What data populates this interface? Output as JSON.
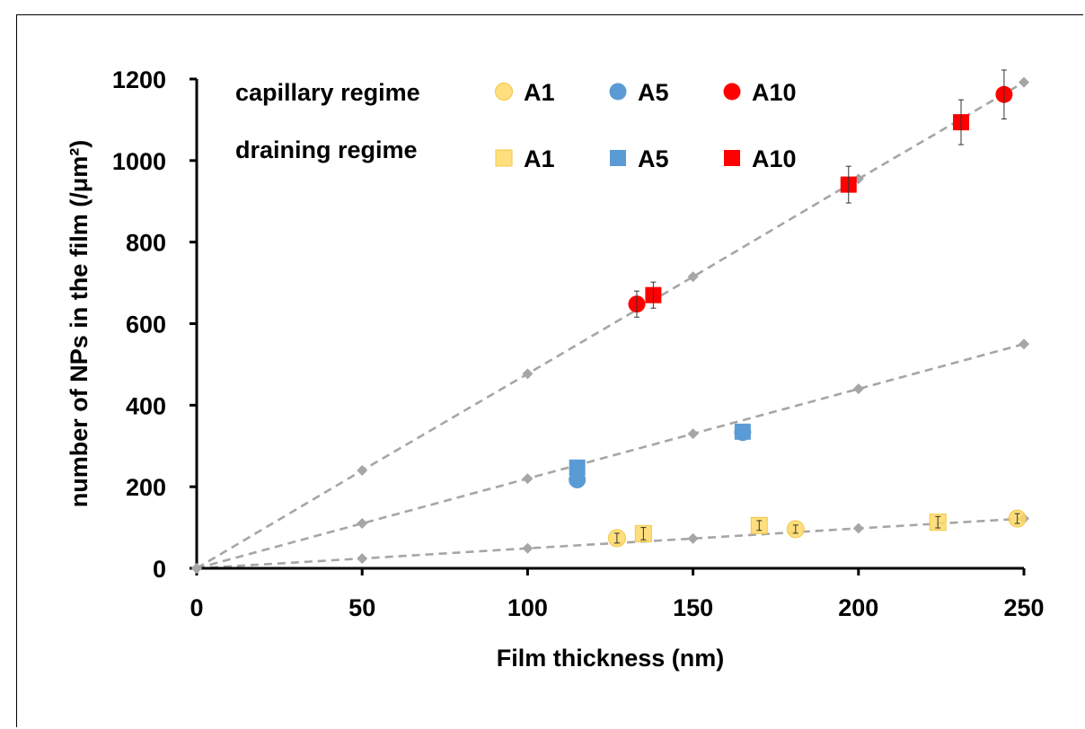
{
  "chart_data": {
    "type": "scatter",
    "title": "",
    "xlabel": "Film thickness (nm)",
    "ylabel": "number of NPs in the film  (/μm²)",
    "xlim": [
      0,
      250
    ],
    "ylim": [
      0,
      1200
    ],
    "xticks": [
      0,
      50,
      100,
      150,
      200,
      250
    ],
    "yticks": [
      0,
      200,
      400,
      600,
      800,
      1000,
      1200
    ],
    "grid": false,
    "legend": {
      "placement": "top-left",
      "row_labels": [
        "capillary regime",
        "draining regime"
      ],
      "entries": [
        {
          "row": 0,
          "label": "A1",
          "marker": "circle",
          "color": "#FFD966"
        },
        {
          "row": 0,
          "label": "A5",
          "marker": "circle",
          "color": "#5B9BD5"
        },
        {
          "row": 0,
          "label": "A10",
          "marker": "circle",
          "color": "#FF0000"
        },
        {
          "row": 1,
          "label": "A1",
          "marker": "square",
          "color": "#FFD966"
        },
        {
          "row": 1,
          "label": "A5",
          "marker": "square",
          "color": "#5B9BD5"
        },
        {
          "row": 1,
          "label": "A10",
          "marker": "square",
          "color": "#FF0000"
        }
      ]
    },
    "reference_lines": [
      {
        "color": "#A6A6A6",
        "x": [
          0,
          50,
          100,
          150,
          200,
          250
        ],
        "y": [
          0,
          240,
          477,
          715,
          955,
          1192
        ]
      },
      {
        "color": "#A6A6A6",
        "x": [
          0,
          50,
          100,
          150,
          200,
          250
        ],
        "y": [
          0,
          110,
          220,
          330,
          440,
          550
        ]
      },
      {
        "color": "#A6A6A6",
        "x": [
          0,
          50,
          100,
          150,
          200,
          250
        ],
        "y": [
          0,
          24,
          49,
          73,
          98,
          122
        ]
      }
    ],
    "series": [
      {
        "legend_index": 0,
        "marker": "circle",
        "color": "#FFD966",
        "points": [
          {
            "x": 127,
            "y": 74,
            "err": 12
          },
          {
            "x": 181,
            "y": 96,
            "err": 10
          },
          {
            "x": 248,
            "y": 122,
            "err": 12
          }
        ]
      },
      {
        "legend_index": 1,
        "marker": "circle",
        "color": "#5B9BD5",
        "points": [
          {
            "x": 115,
            "y": 217,
            "err": 0
          },
          {
            "x": 165,
            "y": 333,
            "err": 0
          }
        ]
      },
      {
        "legend_index": 2,
        "marker": "circle",
        "color": "#FF0000",
        "points": [
          {
            "x": 133,
            "y": 648,
            "err": 32
          },
          {
            "x": 244,
            "y": 1162,
            "err": 60
          }
        ]
      },
      {
        "legend_index": 3,
        "marker": "square",
        "color": "#FFD966",
        "points": [
          {
            "x": 135,
            "y": 85,
            "err": 15
          },
          {
            "x": 170,
            "y": 105,
            "err": 12
          },
          {
            "x": 224,
            "y": 113,
            "err": 14
          }
        ]
      },
      {
        "legend_index": 4,
        "marker": "square",
        "color": "#5B9BD5",
        "points": [
          {
            "x": 115,
            "y": 247,
            "err": 0
          },
          {
            "x": 165,
            "y": 335,
            "err": 0
          }
        ]
      },
      {
        "legend_index": 5,
        "marker": "square",
        "color": "#FF0000",
        "points": [
          {
            "x": 138,
            "y": 670,
            "err": 32
          },
          {
            "x": 197,
            "y": 941,
            "err": 45
          },
          {
            "x": 231,
            "y": 1094,
            "err": 55
          }
        ]
      }
    ]
  }
}
